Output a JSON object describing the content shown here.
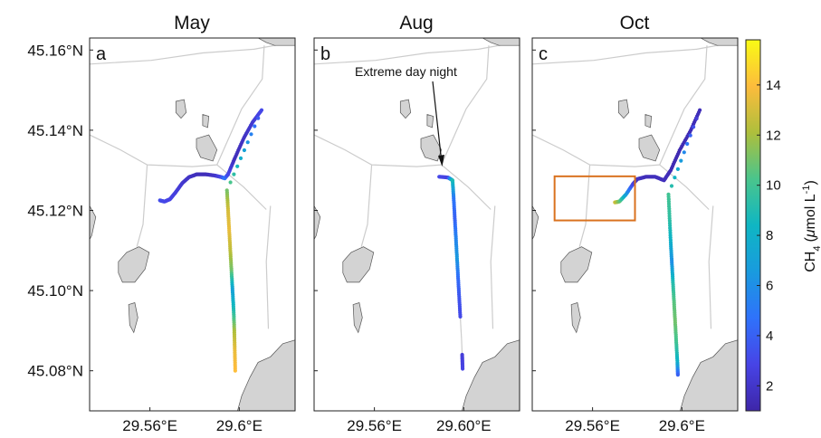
{
  "figure": {
    "lat_ticks": [
      "45.16°N",
      "45.14°N",
      "45.12°N",
      "45.10°N",
      "45.08°N"
    ],
    "lat_values": [
      45.16,
      45.14,
      45.12,
      45.1,
      45.08
    ],
    "lat_range": [
      45.07,
      45.163
    ],
    "lon_range": [
      29.533,
      29.625
    ],
    "colormap": "parula",
    "colors": {
      "land": "#d3d3d3",
      "roads": "#cccccc",
      "box": "#d9721f",
      "axes": "#222222"
    },
    "colorbar": {
      "label_main": "CH",
      "label_sub": "4",
      "label_units_a": "(",
      "label_mu": "μ",
      "label_units_b": "mol L",
      "label_sup": "-1",
      "label_units_c": ")",
      "ticks": [
        "2",
        "4",
        "6",
        "8",
        "10",
        "12",
        "14"
      ],
      "tick_values": [
        2,
        4,
        6,
        8,
        10,
        12,
        14
      ],
      "range": [
        1,
        15.8
      ]
    }
  },
  "panels": [
    {
      "title": "May",
      "letter": "a",
      "lon_ticks": [
        "29.56°E",
        "29.6°E"
      ],
      "lon_values": [
        29.56,
        29.6
      ]
    },
    {
      "title": "Aug",
      "letter": "b",
      "lon_ticks": [
        "29.56°E",
        "29.60°E"
      ],
      "lon_values": [
        29.56,
        29.6
      ],
      "annotation": "Extreme day night"
    },
    {
      "title": "Oct",
      "letter": "c",
      "lon_ticks": [
        "29.56°E",
        "29.6°E"
      ],
      "lon_values": [
        29.56,
        29.6
      ],
      "highlight_box": {
        "lon": [
          29.543,
          29.579
        ],
        "lat": [
          45.1175,
          45.1285
        ]
      }
    }
  ],
  "chart_data": {
    "type": "scatter",
    "x_label": "Longitude",
    "y_label": "Latitude",
    "color_label": "CH4 (μmol L-1)",
    "series": [
      {
        "name": "May",
        "points": [
          {
            "lon": 29.5645,
            "lat": 45.1225,
            "ch4": 3.2
          },
          {
            "lon": 29.5665,
            "lat": 45.1222,
            "ch4": 3.0
          },
          {
            "lon": 29.569,
            "lat": 45.1228,
            "ch4": 2.8
          },
          {
            "lon": 29.5715,
            "lat": 45.1245,
            "ch4": 2.6
          },
          {
            "lon": 29.5745,
            "lat": 45.1268,
            "ch4": 2.2
          },
          {
            "lon": 29.5775,
            "lat": 45.1283,
            "ch4": 1.9
          },
          {
            "lon": 29.581,
            "lat": 45.129,
            "ch4": 1.6
          },
          {
            "lon": 29.585,
            "lat": 45.129,
            "ch4": 1.5
          },
          {
            "lon": 29.589,
            "lat": 45.1287,
            "ch4": 1.9
          },
          {
            "lon": 29.592,
            "lat": 45.1283,
            "ch4": 3.0
          },
          {
            "lon": 29.5935,
            "lat": 45.128,
            "ch4": 5.0
          },
          {
            "lon": 29.595,
            "lat": 45.129,
            "ch4": 3.0
          },
          {
            "lon": 29.598,
            "lat": 45.133,
            "ch4": 1.6
          },
          {
            "lon": 29.602,
            "lat": 45.138,
            "ch4": 1.8
          },
          {
            "lon": 29.606,
            "lat": 45.142,
            "ch4": 2.2
          },
          {
            "lon": 29.61,
            "lat": 45.145,
            "ch4": 3.0
          },
          {
            "lon": 29.5945,
            "lat": 45.125,
            "ch4": 11.0
          },
          {
            "lon": 29.595,
            "lat": 45.12,
            "ch4": 13.0
          },
          {
            "lon": 29.5955,
            "lat": 45.115,
            "ch4": 13.5
          },
          {
            "lon": 29.596,
            "lat": 45.11,
            "ch4": 12.5
          },
          {
            "lon": 29.5965,
            "lat": 45.105,
            "ch4": 11.0
          },
          {
            "lon": 29.597,
            "lat": 45.1,
            "ch4": 7.0
          },
          {
            "lon": 29.5975,
            "lat": 45.095,
            "ch4": 9.0
          },
          {
            "lon": 29.5978,
            "lat": 45.09,
            "ch4": 12.0
          },
          {
            "lon": 29.598,
            "lat": 45.085,
            "ch4": 13.5
          },
          {
            "lon": 29.5982,
            "lat": 45.08,
            "ch4": 14.0
          }
        ]
      },
      {
        "name": "Aug",
        "points": [
          {
            "lon": 29.589,
            "lat": 45.1284,
            "ch4": 3.0
          },
          {
            "lon": 29.593,
            "lat": 45.1282,
            "ch4": 2.6
          },
          {
            "lon": 29.595,
            "lat": 45.1275,
            "ch4": 9.0
          },
          {
            "lon": 29.5955,
            "lat": 45.123,
            "ch4": 5.0
          },
          {
            "lon": 29.596,
            "lat": 45.118,
            "ch4": 4.0
          },
          {
            "lon": 29.5965,
            "lat": 45.113,
            "ch4": 5.5
          },
          {
            "lon": 29.597,
            "lat": 45.108,
            "ch4": 6.5
          },
          {
            "lon": 29.5975,
            "lat": 45.103,
            "ch4": 4.5
          },
          {
            "lon": 29.598,
            "lat": 45.098,
            "ch4": 3.5
          },
          {
            "lon": 29.5985,
            "lat": 45.093,
            "ch4": 3.0
          },
          {
            "lon": 29.599,
            "lat": 45.088,
            "ch4": null
          },
          {
            "lon": 29.5993,
            "lat": 45.084,
            "ch4": 2.4
          },
          {
            "lon": 29.5995,
            "lat": 45.0805,
            "ch4": 2.8
          }
        ]
      },
      {
        "name": "Oct",
        "points": [
          {
            "lon": 29.57,
            "lat": 45.122,
            "ch4": 13.0
          },
          {
            "lon": 29.572,
            "lat": 45.1222,
            "ch4": 11.0
          },
          {
            "lon": 29.575,
            "lat": 45.124,
            "ch4": 7.0
          },
          {
            "lon": 29.578,
            "lat": 45.1265,
            "ch4": 3.0
          },
          {
            "lon": 29.58,
            "lat": 45.1278,
            "ch4": 1.8
          },
          {
            "lon": 29.584,
            "lat": 45.1284,
            "ch4": 1.5
          },
          {
            "lon": 29.588,
            "lat": 45.1284,
            "ch4": 1.6
          },
          {
            "lon": 29.592,
            "lat": 45.1275,
            "ch4": 1.6
          },
          {
            "lon": 29.595,
            "lat": 45.13,
            "ch4": 1.4
          },
          {
            "lon": 29.599,
            "lat": 45.135,
            "ch4": 1.3
          },
          {
            "lon": 29.604,
            "lat": 45.14,
            "ch4": 1.4
          },
          {
            "lon": 29.608,
            "lat": 45.145,
            "ch4": 1.5
          },
          {
            "lon": 29.594,
            "lat": 45.124,
            "ch4": 10.0
          },
          {
            "lon": 29.5945,
            "lat": 45.118,
            "ch4": 9.5
          },
          {
            "lon": 29.595,
            "lat": 45.112,
            "ch4": 8.0
          },
          {
            "lon": 29.5955,
            "lat": 45.107,
            "ch4": 6.0
          },
          {
            "lon": 29.596,
            "lat": 45.102,
            "ch4": 9.0
          },
          {
            "lon": 29.5965,
            "lat": 45.097,
            "ch4": 10.5
          },
          {
            "lon": 29.597,
            "lat": 45.092,
            "ch4": 11.0
          },
          {
            "lon": 29.5975,
            "lat": 45.087,
            "ch4": 10.0
          },
          {
            "lon": 29.598,
            "lat": 45.082,
            "ch4": 8.0
          },
          {
            "lon": 29.5982,
            "lat": 45.079,
            "ch4": 4.0
          }
        ]
      }
    ]
  }
}
